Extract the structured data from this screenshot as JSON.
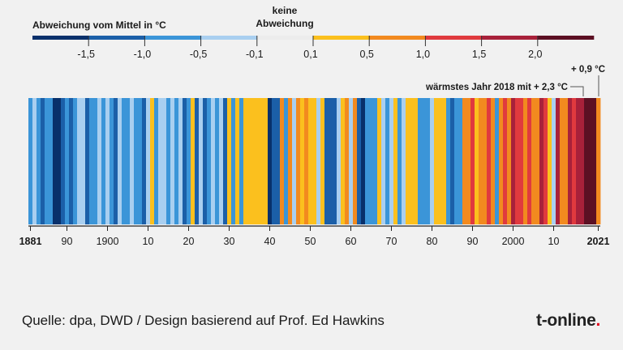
{
  "chart_data": {
    "type": "heatmap",
    "title": "",
    "legend": {
      "title": "Abweichung vom Mittel in °C",
      "center_label_line1": "keine",
      "center_label_line2": "Abweichung",
      "boundaries": [
        "-1,5",
        "-1,0",
        "-0,5",
        "-0,1",
        "0,1",
        "0,5",
        "1,0",
        "1,5",
        "2,0"
      ],
      "boundary_values": [
        -1.5,
        -1.0,
        -0.5,
        -0.1,
        0.1,
        0.5,
        1.0,
        1.5,
        2.0
      ],
      "bins": [
        {
          "min": -2.0,
          "max": -1.5,
          "color": "#08306b"
        },
        {
          "min": -1.5,
          "max": -1.0,
          "color": "#1b5fa8"
        },
        {
          "min": -1.0,
          "max": -0.5,
          "color": "#3b95d8"
        },
        {
          "min": -0.5,
          "max": -0.1,
          "color": "#a9cff0"
        },
        {
          "min": -0.1,
          "max": 0.1,
          "color": "#ececec"
        },
        {
          "min": 0.1,
          "max": 0.5,
          "color": "#fbc01e"
        },
        {
          "min": 0.5,
          "max": 1.0,
          "color": "#f28a1f"
        },
        {
          "min": 1.0,
          "max": 1.5,
          "color": "#e03a3e"
        },
        {
          "min": 1.5,
          "max": 2.0,
          "color": "#a8213a"
        },
        {
          "min": 2.0,
          "max": 2.5,
          "color": "#5c1023"
        }
      ]
    },
    "x_range": [
      1881,
      2021
    ],
    "x_ticks": [
      {
        "value": 1881,
        "label": "1881",
        "bold": true
      },
      {
        "value": 1890,
        "label": "90",
        "bold": false
      },
      {
        "value": 1900,
        "label": "1900",
        "bold": false
      },
      {
        "value": 1910,
        "label": "10",
        "bold": false
      },
      {
        "value": 1920,
        "label": "20",
        "bold": false
      },
      {
        "value": 1930,
        "label": "30",
        "bold": false
      },
      {
        "value": 1940,
        "label": "40",
        "bold": false
      },
      {
        "value": 1950,
        "label": "50",
        "bold": false
      },
      {
        "value": 1960,
        "label": "60",
        "bold": false
      },
      {
        "value": 1970,
        "label": "70",
        "bold": false
      },
      {
        "value": 1980,
        "label": "80",
        "bold": false
      },
      {
        "value": 1990,
        "label": "90",
        "bold": false
      },
      {
        "value": 2000,
        "label": "2000",
        "bold": false
      },
      {
        "value": 2010,
        "label": "10",
        "bold": false
      },
      {
        "value": 2021,
        "label": "2021",
        "bold": true
      }
    ],
    "years": [
      1881,
      1882,
      1883,
      1884,
      1885,
      1886,
      1887,
      1888,
      1889,
      1890,
      1891,
      1892,
      1893,
      1894,
      1895,
      1896,
      1897,
      1898,
      1899,
      1900,
      1901,
      1902,
      1903,
      1904,
      1905,
      1906,
      1907,
      1908,
      1909,
      1910,
      1911,
      1912,
      1913,
      1914,
      1915,
      1916,
      1917,
      1918,
      1919,
      1920,
      1921,
      1922,
      1923,
      1924,
      1925,
      1926,
      1927,
      1928,
      1929,
      1930,
      1931,
      1932,
      1933,
      1934,
      1935,
      1936,
      1937,
      1938,
      1939,
      1940,
      1941,
      1942,
      1943,
      1944,
      1945,
      1946,
      1947,
      1948,
      1949,
      1950,
      1951,
      1952,
      1953,
      1954,
      1955,
      1956,
      1957,
      1958,
      1959,
      1960,
      1961,
      1962,
      1963,
      1964,
      1965,
      1966,
      1967,
      1968,
      1969,
      1970,
      1971,
      1972,
      1973,
      1974,
      1975,
      1976,
      1977,
      1978,
      1979,
      1980,
      1981,
      1982,
      1983,
      1984,
      1985,
      1986,
      1987,
      1988,
      1989,
      1990,
      1991,
      1992,
      1993,
      1994,
      1995,
      1996,
      1997,
      1998,
      1999,
      2000,
      2001,
      2002,
      2003,
      2004,
      2005,
      2006,
      2007,
      2008,
      2009,
      2010,
      2011,
      2012,
      2013,
      2014,
      2015,
      2016,
      2017,
      2018,
      2019,
      2020,
      2021
    ],
    "anomalies": [
      -0.8,
      -0.3,
      -0.7,
      -1.2,
      -0.8,
      -0.9,
      -1.6,
      -1.6,
      -1.2,
      -0.8,
      -1.2,
      -0.9,
      -0.3,
      -0.2,
      -1.3,
      -0.8,
      -0.7,
      -0.3,
      -0.6,
      -0.2,
      -0.7,
      -1.2,
      -0.3,
      -0.7,
      -0.6,
      -0.2,
      -0.8,
      -0.7,
      -1.1,
      -0.3,
      0.3,
      -1.0,
      -0.2,
      -0.2,
      -0.7,
      -0.2,
      -0.8,
      -0.3,
      -1.1,
      -0.7,
      0.3,
      -1.3,
      -0.3,
      -1.2,
      -0.7,
      -0.3,
      -0.7,
      -0.2,
      -1.1,
      0.3,
      -0.7,
      0.3,
      -0.7,
      0.3,
      0.3,
      0.3,
      0.3,
      0.3,
      0.3,
      -1.6,
      -1.3,
      -1.1,
      0.8,
      -0.7,
      0.8,
      -0.2,
      0.8,
      0.3,
      0.8,
      0.3,
      0.3,
      -0.2,
      0.3,
      -1.2,
      -1.1,
      -1.3,
      -0.2,
      0.3,
      0.8,
      -0.3,
      0.8,
      -1.2,
      -1.6,
      -0.8,
      -0.7,
      -0.8,
      0.3,
      -0.3,
      -0.7,
      -0.3,
      0.3,
      -0.7,
      -0.3,
      0.3,
      0.3,
      0.3,
      -0.7,
      -0.7,
      -0.7,
      -0.2,
      0.3,
      0.3,
      0.3,
      -0.8,
      -1.2,
      -0.8,
      -0.7,
      0.8,
      0.8,
      1.2,
      0.3,
      0.8,
      0.8,
      1.2,
      0.8,
      -0.7,
      0.8,
      1.2,
      0.8,
      1.8,
      1.2,
      1.2,
      0.8,
      1.2,
      0.8,
      0.8,
      1.8,
      1.3,
      0.3,
      -0.3,
      1.8,
      0.8,
      0.8,
      1.8,
      1.2,
      1.7,
      1.7,
      2.3,
      2.1,
      2.3,
      0.9
    ],
    "annotations": [
      {
        "text": "wärmstes Jahr 2018 mit + 2,3 °C",
        "year": 2018
      },
      {
        "text": "+ 0,9 °C",
        "year": 2021
      }
    ]
  },
  "footer": {
    "source": "Quelle: dpa, DWD / Design basierend auf Prof. Ed Hawkins",
    "logo_main": "t-online",
    "logo_dot": "."
  }
}
